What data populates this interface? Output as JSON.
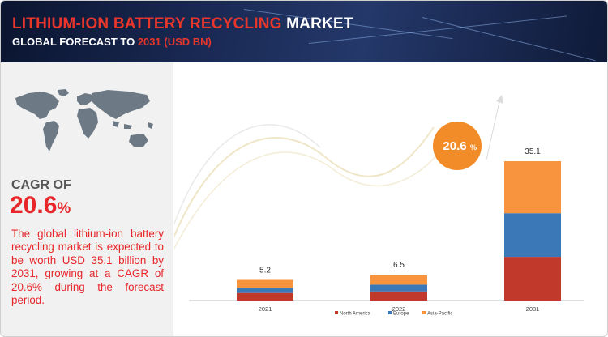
{
  "header": {
    "title_highlight": "LITHIUM-ION BATTERY RECYCLING",
    "title_rest": "MARKET",
    "subtitle_prefix": "GLOBAL FORECAST TO",
    "subtitle_highlight": "2031 (USD BN)"
  },
  "summary": {
    "cagr_label": "CAGR OF",
    "cagr_value": "20.6",
    "cagr_unit": "%",
    "description": "The global lithium-ion battery recycling market is expected to be worth USD 35.1 billion by 2031, growing at a CAGR of 20.6% during the forecast period."
  },
  "badge": {
    "value": "20.6",
    "unit": "%"
  },
  "colors": {
    "accent": "#e8362b",
    "north_america": "#c0392b",
    "europe": "#3a78b8",
    "asia_pacific": "#f7943d",
    "badge": "#f28c28"
  },
  "chart_data": {
    "type": "bar",
    "stacked": true,
    "categories": [
      "2021",
      "2022",
      "2031"
    ],
    "totals": [
      5.2,
      6.5,
      35.1
    ],
    "series": [
      {
        "name": "North America",
        "values": [
          1.9,
          2.3,
          11.0
        ]
      },
      {
        "name": "Europe",
        "values": [
          1.3,
          1.7,
          11.0
        ]
      },
      {
        "name": "Asia-Pacific",
        "values": [
          2.0,
          2.5,
          13.1
        ]
      }
    ],
    "ylim": [
      0,
      40
    ],
    "legend_position": "bottom",
    "grid": false
  }
}
